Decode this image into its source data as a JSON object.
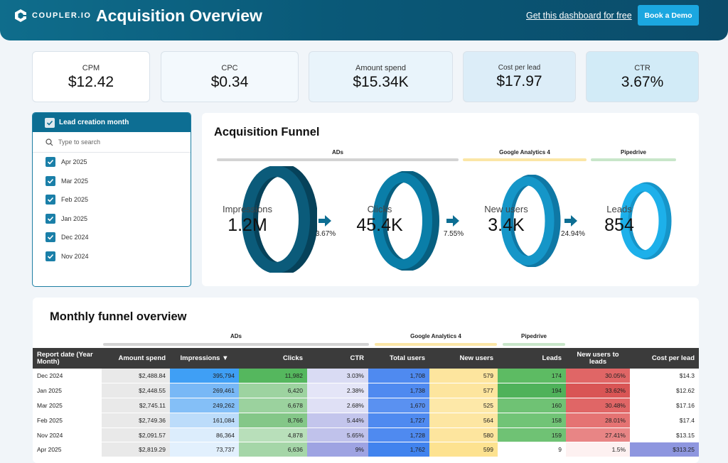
{
  "header": {
    "logo_text": "COUPLER.IO",
    "title": "Acquisition Overview",
    "link_text": "Get this dashboard for free",
    "demo_button": "Book a Demo"
  },
  "kpis": [
    {
      "label": "CPM",
      "value": "$12.42"
    },
    {
      "label": "CPC",
      "value": "$0.34"
    },
    {
      "label": "Amount spend",
      "value": "$15.34K"
    },
    {
      "label": "Cost per lead",
      "value": "$17.97"
    },
    {
      "label": "CTR",
      "value": "3.67%"
    }
  ],
  "filter": {
    "header": "Lead creation month",
    "search_placeholder": "Type to search",
    "items": [
      "Apr 2025",
      "Mar 2025",
      "Feb 2025",
      "Jan 2025",
      "Dec 2024",
      "Nov 2024"
    ]
  },
  "funnel": {
    "title": "Acquisition Funnel",
    "groups": [
      {
        "label": "ADs",
        "color": "#d0d0d0"
      },
      {
        "label": "Google Analytics 4",
        "color": "#fbe6a6"
      },
      {
        "label": "Pipedrive",
        "color": "#c8e6c9"
      }
    ],
    "stages": [
      {
        "label": "Impressions",
        "value": "1.2M",
        "color": "#0b5b7a"
      },
      {
        "label": "Clicks",
        "value": "45.4K",
        "color": "#0a7ea8"
      },
      {
        "label": "New users",
        "value": "3.4K",
        "color": "#1596c8"
      },
      {
        "label": "Leads",
        "value": "854",
        "color": "#1db0ea"
      }
    ],
    "rates": [
      "3.67%",
      "7.55%",
      "24.94%"
    ]
  },
  "monthly": {
    "title": "Monthly funnel overview",
    "groups": [
      {
        "label": "ADs",
        "color": "#d0d0d0"
      },
      {
        "label": "Google Analytics 4",
        "color": "#fbe6a6"
      },
      {
        "label": "Pipedrive",
        "color": "#c8e6c9"
      }
    ],
    "columns": [
      "Report date (Year Month)",
      "Amount spend",
      "Impressions ▼",
      "Clicks",
      "CTR",
      "Total users",
      "New users",
      "Leads",
      "New users to leads",
      "Cost per lead"
    ],
    "rows": [
      [
        "Dec 2024",
        "$2,488.84",
        "395,794",
        "11,982",
        "3.03%",
        "1,708",
        "579",
        "174",
        "30.05%",
        "$14.3"
      ],
      [
        "Jan 2025",
        "$2,448.55",
        "269,461",
        "6,420",
        "2.38%",
        "1,738",
        "577",
        "194",
        "33.62%",
        "$12.62"
      ],
      [
        "Mar 2025",
        "$2,745.11",
        "249,262",
        "6,678",
        "2.68%",
        "1,670",
        "525",
        "160",
        "30.48%",
        "$17.16"
      ],
      [
        "Feb 2025",
        "$2,749.36",
        "161,084",
        "8,766",
        "5.44%",
        "1,727",
        "564",
        "158",
        "28.01%",
        "$17.4"
      ],
      [
        "Nov 2024",
        "$2,091.57",
        "86,364",
        "4,878",
        "5.65%",
        "1,728",
        "580",
        "159",
        "27.41%",
        "$13.15"
      ],
      [
        "Apr 2025",
        "$2,819.29",
        "73,737",
        "6,636",
        "9%",
        "1,762",
        "599",
        "9",
        "1.5%",
        "$313.25"
      ]
    ],
    "cell_colors": [
      [
        "#ffffff",
        "#e9e9e9",
        "#3f9ff5",
        "#55b75e",
        "#d9dbf3",
        "#4f8af0",
        "#fde59e",
        "#5dbb63",
        "#e06666",
        "#ffffff"
      ],
      [
        "#ffffff",
        "#e9e9e9",
        "#78b8f6",
        "#9dd3a0",
        "#e4e5f7",
        "#4f8af0",
        "#fde59e",
        "#4fb25a",
        "#d95555",
        "#ffffff"
      ],
      [
        "#ffffff",
        "#e9e9e9",
        "#84bff7",
        "#9bd29e",
        "#dfe0f5",
        "#5a91f1",
        "#fde8a8",
        "#6fc274",
        "#e06666",
        "#ffffff"
      ],
      [
        "#ffffff",
        "#e9e9e9",
        "#bcdcfa",
        "#84c788",
        "#c3c5ec",
        "#4f8af0",
        "#fde6a2",
        "#71c476",
        "#e57373",
        "#ffffff"
      ],
      [
        "#ffffff",
        "#e9e9e9",
        "#dcedfc",
        "#b8dfba",
        "#c0c2eb",
        "#4f8af0",
        "#fde59e",
        "#6fc274",
        "#e88585",
        "#ffffff"
      ],
      [
        "#ffffff",
        "#e9e9e9",
        "#e2f0fd",
        "#a5d6a8",
        "#9ea3e2",
        "#4183ee",
        "#fde290",
        "#ffffff",
        "#fdf1f1",
        "#8e96df"
      ]
    ]
  }
}
